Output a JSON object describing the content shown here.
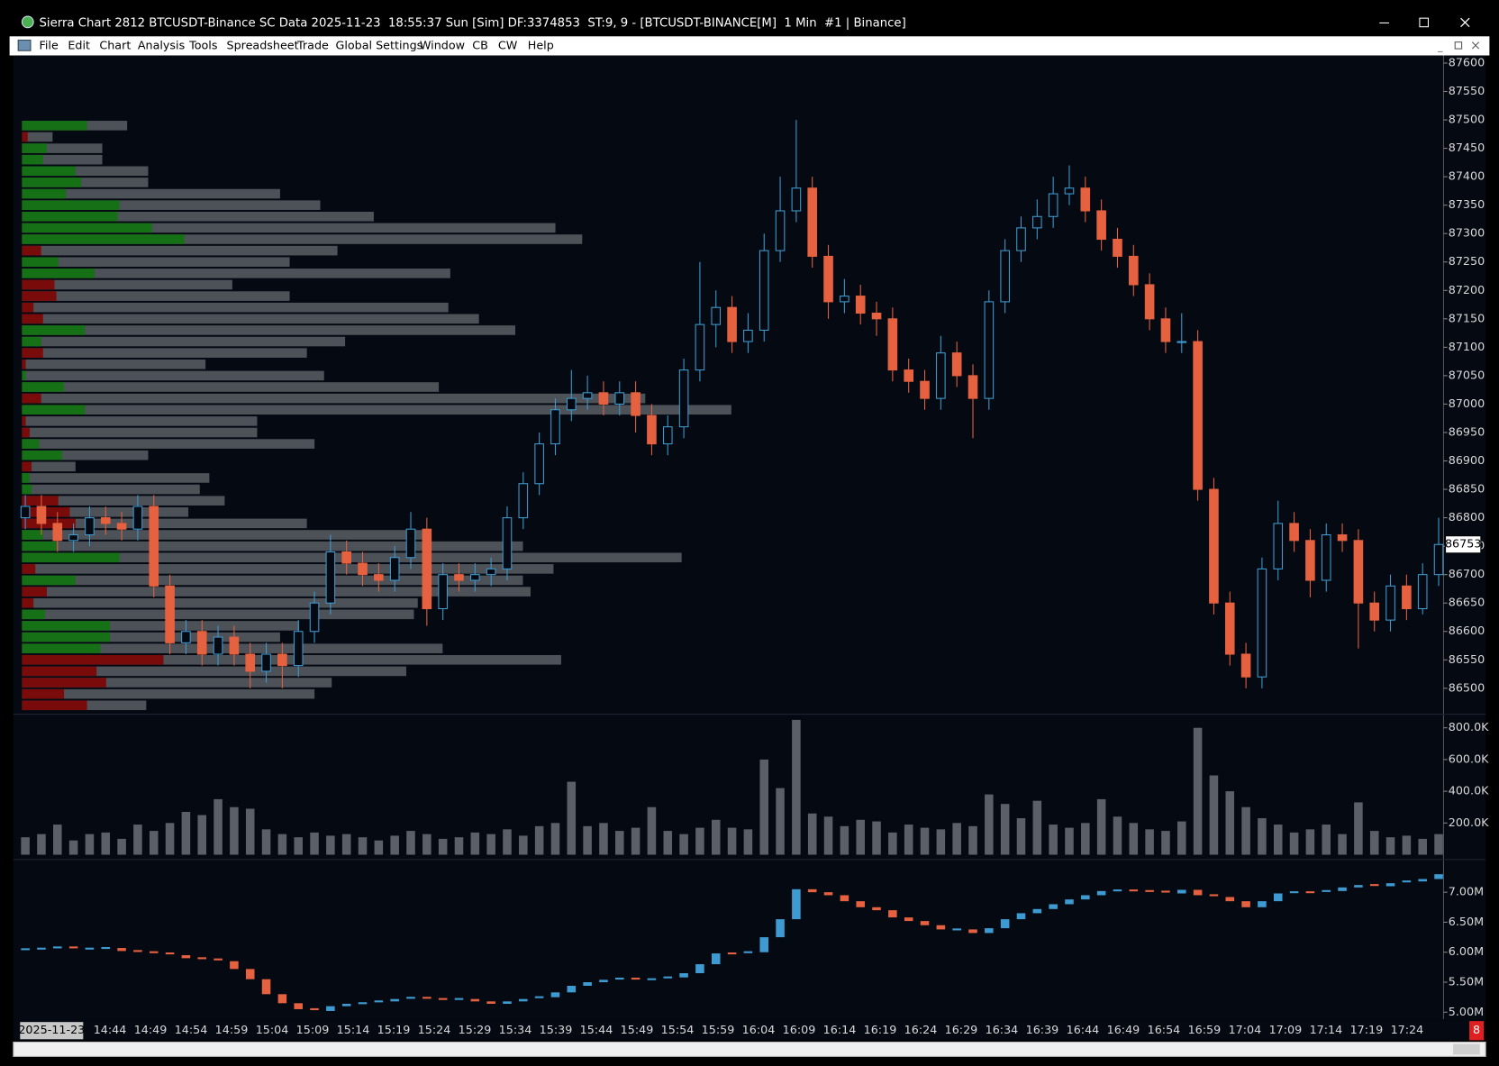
{
  "window": {
    "title": "Sierra Chart 2812 BTCUSDT-Binance SC Data 2025-11-23  18:55:37 Sun [Sim] DF:3374853  ST:9, 9 - [BTCUSDT-BINANCE[M]  1 Min  #1 | Binance]"
  },
  "menu": {
    "items": [
      "File",
      "Edit",
      "Chart",
      "Analysis",
      "Tools",
      "Spreadsheet",
      "Trade",
      "Global Settings",
      "Window",
      "CB",
      "CW",
      "Help"
    ]
  },
  "time_axis": {
    "date": "2025-11-23",
    "labels": [
      "14:44",
      "14:49",
      "14:54",
      "14:59",
      "15:04",
      "15:09",
      "15:14",
      "15:19",
      "15:24",
      "15:29",
      "15:34",
      "15:39",
      "15:44",
      "15:49",
      "15:54",
      "15:59",
      "16:04",
      "16:09",
      "16:14",
      "16:19",
      "16:24",
      "16:29",
      "16:34",
      "16:39",
      "16:44",
      "16:49",
      "16:54",
      "16:59",
      "17:04",
      "17:09",
      "17:14",
      "17:19",
      "17:24"
    ]
  },
  "badge": "8",
  "chart_data": [
    {
      "type": "candlestick",
      "up_color": "#3d9bd1",
      "down_color": "#e5613f",
      "ylim": [
        86460,
        87610
      ],
      "yticks": [
        87600,
        87550,
        87500,
        87450,
        87400,
        87350,
        87300,
        87250,
        87200,
        87150,
        87100,
        87050,
        87000,
        86950,
        86900,
        86850,
        86800,
        86750,
        86700,
        86650,
        86600,
        86550,
        86500
      ],
      "open": [
        86800,
        86820,
        86790,
        86760,
        86770,
        86800,
        86790,
        86780,
        86820,
        86680,
        86580,
        86600,
        86560,
        86590,
        86560,
        86530,
        86560,
        86540,
        86600,
        86650,
        86740,
        86720,
        86700,
        86690,
        86730,
        86780,
        86640,
        86700,
        86690,
        86700,
        86710,
        86800,
        86860,
        86930,
        86990,
        87010,
        87020,
        87000,
        87020,
        86980,
        86930,
        86960,
        87060,
        87140,
        87170,
        87110,
        87130,
        87270,
        87340,
        87380,
        87260,
        87180,
        87190,
        87160,
        87150,
        87060,
        87040,
        87010,
        87090,
        87050,
        87010,
        87180,
        87270,
        87310,
        87330,
        87370,
        87380,
        87340,
        87290,
        87260,
        87210,
        87150,
        87110,
        87110,
        86850,
        86650,
        86560,
        86520,
        86710,
        86790,
        86760,
        86690,
        86770,
        86760,
        86650,
        86620,
        86680,
        86640,
        86700
      ],
      "high": [
        86840,
        86840,
        86810,
        86790,
        86820,
        86820,
        86810,
        86840,
        86840,
        86700,
        86620,
        86620,
        86610,
        86610,
        86580,
        86580,
        86580,
        86620,
        86670,
        86770,
        86760,
        86740,
        86720,
        86750,
        86810,
        86800,
        86720,
        86720,
        86720,
        86730,
        86820,
        86880,
        86950,
        87010,
        87060,
        87050,
        87040,
        87040,
        87040,
        87000,
        86980,
        87080,
        87250,
        87200,
        87190,
        87160,
        87300,
        87400,
        87500,
        87400,
        87280,
        87220,
        87210,
        87180,
        87170,
        87080,
        87060,
        87120,
        87110,
        87070,
        87200,
        87290,
        87330,
        87360,
        87400,
        87420,
        87400,
        87360,
        87310,
        87280,
        87230,
        87170,
        87160,
        87130,
        86870,
        86670,
        86580,
        86730,
        86830,
        86810,
        86780,
        86790,
        86790,
        86780,
        86670,
        86700,
        86700,
        86720,
        86800
      ],
      "low": [
        86780,
        86770,
        86740,
        86740,
        86750,
        86770,
        86760,
        86760,
        86660,
        86560,
        86560,
        86540,
        86540,
        86540,
        86500,
        86510,
        86500,
        86520,
        86580,
        86630,
        86700,
        86680,
        86670,
        86670,
        86710,
        86610,
        86620,
        86670,
        86670,
        86680,
        86690,
        86780,
        86840,
        86910,
        86970,
        86990,
        86980,
        86980,
        86950,
        86910,
        86910,
        86940,
        87040,
        87100,
        87090,
        87090,
        87110,
        87250,
        87320,
        87240,
        87150,
        87160,
        87140,
        87120,
        87040,
        87020,
        86990,
        86990,
        87030,
        86940,
        86990,
        87160,
        87250,
        87290,
        87310,
        87350,
        87320,
        87270,
        87240,
        87190,
        87130,
        87090,
        87090,
        86830,
        86630,
        86540,
        86500,
        86500,
        86690,
        86740,
        86660,
        86670,
        86740,
        86570,
        86600,
        86600,
        86620,
        86630,
        86680
      ],
      "close": [
        86820,
        86790,
        86760,
        86770,
        86800,
        86790,
        86780,
        86820,
        86680,
        86580,
        86600,
        86560,
        86590,
        86560,
        86530,
        86560,
        86540,
        86600,
        86650,
        86740,
        86720,
        86700,
        86690,
        86730,
        86780,
        86640,
        86700,
        86690,
        86700,
        86710,
        86800,
        86860,
        86930,
        86990,
        87010,
        87020,
        87000,
        87020,
        86980,
        86930,
        86960,
        87060,
        87140,
        87170,
        87110,
        87130,
        87270,
        87340,
        87380,
        87260,
        87180,
        87190,
        87160,
        87150,
        87060,
        87040,
        87010,
        87090,
        87050,
        87010,
        87180,
        87270,
        87310,
        87330,
        87370,
        87380,
        87340,
        87290,
        87260,
        87210,
        87150,
        87110,
        87110,
        86850,
        86650,
        86560,
        86520,
        86710,
        86790,
        86760,
        86690,
        86770,
        86760,
        86650,
        86620,
        86680,
        86640,
        86700,
        86753
      ],
      "profile": {
        "color": "#4d5158",
        "buy_color": "#167016",
        "sell_color": "#7a0b0b",
        "prices": [
          87490,
          87470,
          87450,
          87430,
          87410,
          87390,
          87370,
          87350,
          87330,
          87310,
          87290,
          87270,
          87250,
          87230,
          87210,
          87190,
          87170,
          87150,
          87130,
          87110,
          87090,
          87070,
          87050,
          87030,
          87010,
          86990,
          86970,
          86950,
          86930,
          86910,
          86890,
          86870,
          86850,
          86830,
          86810,
          86790,
          86770,
          86750,
          86730,
          86710,
          86690,
          86670,
          86650,
          86630,
          86610,
          86590,
          86570,
          86550,
          86530,
          86510,
          86490,
          86470
        ],
        "volume": [
          110,
          32,
          84,
          84,
          132,
          132,
          270,
          312,
          368,
          558,
          586,
          330,
          280,
          448,
          220,
          280,
          446,
          478,
          516,
          338,
          298,
          192,
          316,
          436,
          652,
          742,
          246,
          246,
          306,
          132,
          56,
          196,
          186,
          212,
          174,
          298,
          426,
          524,
          690,
          556,
          524,
          532,
          414,
          410,
          290,
          270,
          440,
          564,
          402,
          324,
          306,
          130
        ],
        "delta": [
          68,
          -6,
          26,
          22,
          56,
          62,
          46,
          102,
          100,
          136,
          170,
          -20,
          38,
          76,
          -34,
          -36,
          -12,
          -22,
          66,
          20,
          -22,
          -4,
          4,
          44,
          -20,
          66,
          -4,
          -8,
          18,
          42,
          -10,
          8,
          10,
          -38,
          -50,
          -56,
          22,
          36,
          102,
          -14,
          56,
          -26,
          -12,
          24,
          92,
          92,
          82,
          -148,
          -78,
          -88,
          -44,
          -68
        ]
      }
    },
    {
      "type": "bar",
      "color": "#5b5f67",
      "ylim": [
        0,
        880000
      ],
      "yticks": [
        {
          "value": 200000,
          "label": "200.0K"
        },
        {
          "value": 400000,
          "label": "400.0K"
        },
        {
          "value": 600000,
          "label": "600.0K"
        },
        {
          "value": 800000,
          "label": "800.0K"
        }
      ],
      "values": [
        110000,
        130000,
        190000,
        90000,
        130000,
        140000,
        100000,
        190000,
        150000,
        200000,
        270000,
        250000,
        350000,
        300000,
        290000,
        160000,
        130000,
        110000,
        140000,
        120000,
        130000,
        110000,
        90000,
        120000,
        150000,
        130000,
        100000,
        110000,
        140000,
        130000,
        160000,
        120000,
        180000,
        200000,
        460000,
        180000,
        200000,
        150000,
        170000,
        300000,
        150000,
        130000,
        170000,
        220000,
        170000,
        160000,
        600000,
        420000,
        850000,
        260000,
        240000,
        180000,
        220000,
        210000,
        140000,
        190000,
        170000,
        160000,
        200000,
        180000,
        380000,
        320000,
        230000,
        340000,
        190000,
        170000,
        200000,
        350000,
        240000,
        200000,
        160000,
        150000,
        210000,
        800000,
        500000,
        400000,
        300000,
        230000,
        190000,
        140000,
        160000,
        190000,
        130000,
        330000,
        150000,
        110000,
        120000,
        100000,
        130000
      ]
    },
    {
      "type": "step",
      "up_color": "#3d9bd1",
      "down_color": "#e5613f",
      "ylim": [
        4900000,
        7450000
      ],
      "yticks": [
        {
          "value": 5000000,
          "label": "5.00M"
        },
        {
          "value": 5500000,
          "label": "5.50M"
        },
        {
          "value": 6000000,
          "label": "6.00M"
        },
        {
          "value": 6500000,
          "label": "6.50M"
        },
        {
          "value": 7000000,
          "label": "7.00M"
        }
      ],
      "values": [
        6050000,
        6060000,
        6080000,
        6050000,
        6060000,
        6070000,
        6020000,
        6000000,
        5980000,
        5950000,
        5900000,
        5880000,
        5850000,
        5720000,
        5550000,
        5300000,
        5150000,
        5050000,
        5020000,
        5100000,
        5140000,
        5150000,
        5180000,
        5220000,
        5240000,
        5220000,
        5210000,
        5220000,
        5180000,
        5140000,
        5180000,
        5220000,
        5250000,
        5330000,
        5440000,
        5500000,
        5540000,
        5560000,
        5530000,
        5550000,
        5580000,
        5650000,
        5800000,
        5980000,
        5970000,
        6000000,
        6250000,
        6550000,
        7050000,
        7000000,
        6950000,
        6850000,
        6750000,
        6700000,
        6580000,
        6520000,
        6450000,
        6380000,
        6380000,
        6320000,
        6400000,
        6550000,
        6650000,
        6720000,
        6800000,
        6880000,
        6950000,
        7020000,
        7030000,
        7020000,
        7010000,
        6980000,
        7040000,
        6950000,
        6920000,
        6850000,
        6750000,
        6850000,
        6980000,
        7000000,
        6990000,
        7020000,
        7080000,
        7120000,
        7100000,
        7150000,
        7180000,
        7220000,
        7300000
      ]
    }
  ]
}
